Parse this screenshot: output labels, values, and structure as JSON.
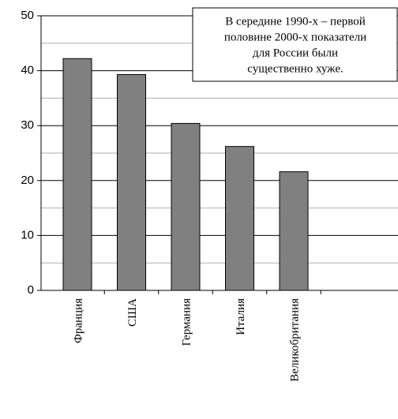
{
  "chart_data": {
    "type": "bar",
    "categories": [
      "Франция",
      "США",
      "Германия",
      "Италия",
      "Великобритания"
    ],
    "values": [
      42.2,
      39.3,
      30.4,
      26.2,
      21.6
    ],
    "color": "#808080",
    "ylim": [
      0,
      50
    ],
    "yticks": [
      0,
      10,
      20,
      30,
      40,
      50
    ],
    "minor_yticks": [
      5,
      15,
      25,
      35,
      45
    ],
    "grid": true,
    "annotation": [
      "В середине 1990-х – первой",
      "половине 2000-х показатели",
      "для России были",
      "существенно хуже."
    ]
  }
}
